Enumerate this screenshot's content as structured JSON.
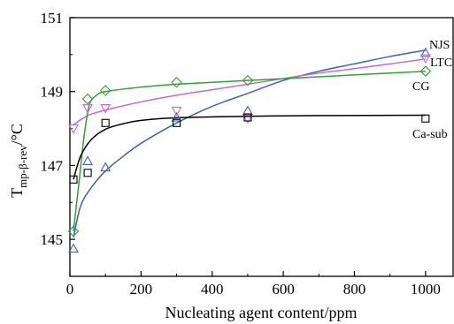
{
  "chart_data": {
    "type": "scatter",
    "xlabel": "Nucleating agent content/ppm",
    "ylabel": {
      "base": "T",
      "sub": "mp-β-rev",
      "unit": "/°C"
    },
    "xlim": [
      0,
      1080
    ],
    "ylim": [
      144,
      151
    ],
    "x_ticks": [
      "0",
      "200",
      "400",
      "600",
      "800",
      "1000"
    ],
    "x_tick_values": [
      0,
      200,
      400,
      600,
      800,
      1000
    ],
    "y_ticks": [
      "145",
      "147",
      "149",
      "151"
    ],
    "y_tick_values": [
      145,
      147,
      149,
      151
    ],
    "grid": false,
    "series": [
      {
        "name": "NJS",
        "color": "#3a62b8",
        "marker": "triangle-up",
        "points": [
          [
            10,
            144.75
          ],
          [
            50,
            147.12
          ],
          [
            100,
            146.95
          ],
          [
            300,
            148.3
          ],
          [
            500,
            148.48
          ],
          [
            1000,
            150.05
          ]
        ],
        "fit": [
          [
            10,
            145.05
          ],
          [
            30,
            145.9
          ],
          [
            60,
            146.4
          ],
          [
            100,
            146.85
          ],
          [
            150,
            147.25
          ],
          [
            200,
            147.6
          ],
          [
            300,
            148.15
          ],
          [
            400,
            148.6
          ],
          [
            500,
            148.95
          ],
          [
            600,
            149.3
          ],
          [
            700,
            149.55
          ],
          [
            800,
            149.75
          ],
          [
            900,
            149.95
          ],
          [
            1000,
            150.12
          ]
        ]
      },
      {
        "name": "LTC",
        "color": "#cc66cc",
        "marker": "triangle-down",
        "points": [
          [
            10,
            148.0
          ],
          [
            50,
            148.55
          ],
          [
            100,
            148.55
          ],
          [
            300,
            148.48
          ],
          [
            500,
            148.27
          ],
          [
            1000,
            149.9
          ]
        ],
        "fit": [
          [
            10,
            148.1
          ],
          [
            50,
            148.35
          ],
          [
            100,
            148.5
          ],
          [
            200,
            148.72
          ],
          [
            300,
            148.9
          ],
          [
            400,
            149.05
          ],
          [
            500,
            149.2
          ],
          [
            600,
            149.35
          ],
          [
            700,
            149.5
          ],
          [
            800,
            149.62
          ],
          [
            900,
            149.75
          ],
          [
            1000,
            149.88
          ]
        ]
      },
      {
        "name": "CG",
        "color": "#33a033",
        "marker": "diamond",
        "points": [
          [
            10,
            145.22
          ],
          [
            50,
            148.8
          ],
          [
            100,
            149.03
          ],
          [
            300,
            149.25
          ],
          [
            500,
            149.3
          ],
          [
            1000,
            149.55
          ]
        ],
        "fit": [
          [
            10,
            145.22
          ],
          [
            25,
            146.5
          ],
          [
            40,
            147.8
          ],
          [
            55,
            148.65
          ],
          [
            75,
            148.9
          ],
          [
            100,
            149.0
          ],
          [
            200,
            149.12
          ],
          [
            300,
            149.2
          ],
          [
            500,
            149.3
          ],
          [
            700,
            149.4
          ],
          [
            1000,
            149.55
          ]
        ]
      },
      {
        "name": "Ca-sub",
        "color": "#000000",
        "marker": "square",
        "points": [
          [
            10,
            146.62
          ],
          [
            50,
            146.8
          ],
          [
            100,
            148.15
          ],
          [
            300,
            148.15
          ],
          [
            500,
            148.3
          ],
          [
            1000,
            148.27
          ]
        ],
        "fit": [
          [
            10,
            146.62
          ],
          [
            30,
            147.25
          ],
          [
            60,
            147.7
          ],
          [
            100,
            147.98
          ],
          [
            150,
            148.13
          ],
          [
            200,
            148.22
          ],
          [
            300,
            148.29
          ],
          [
            500,
            148.33
          ],
          [
            700,
            148.35
          ],
          [
            1000,
            148.36
          ]
        ]
      }
    ]
  }
}
